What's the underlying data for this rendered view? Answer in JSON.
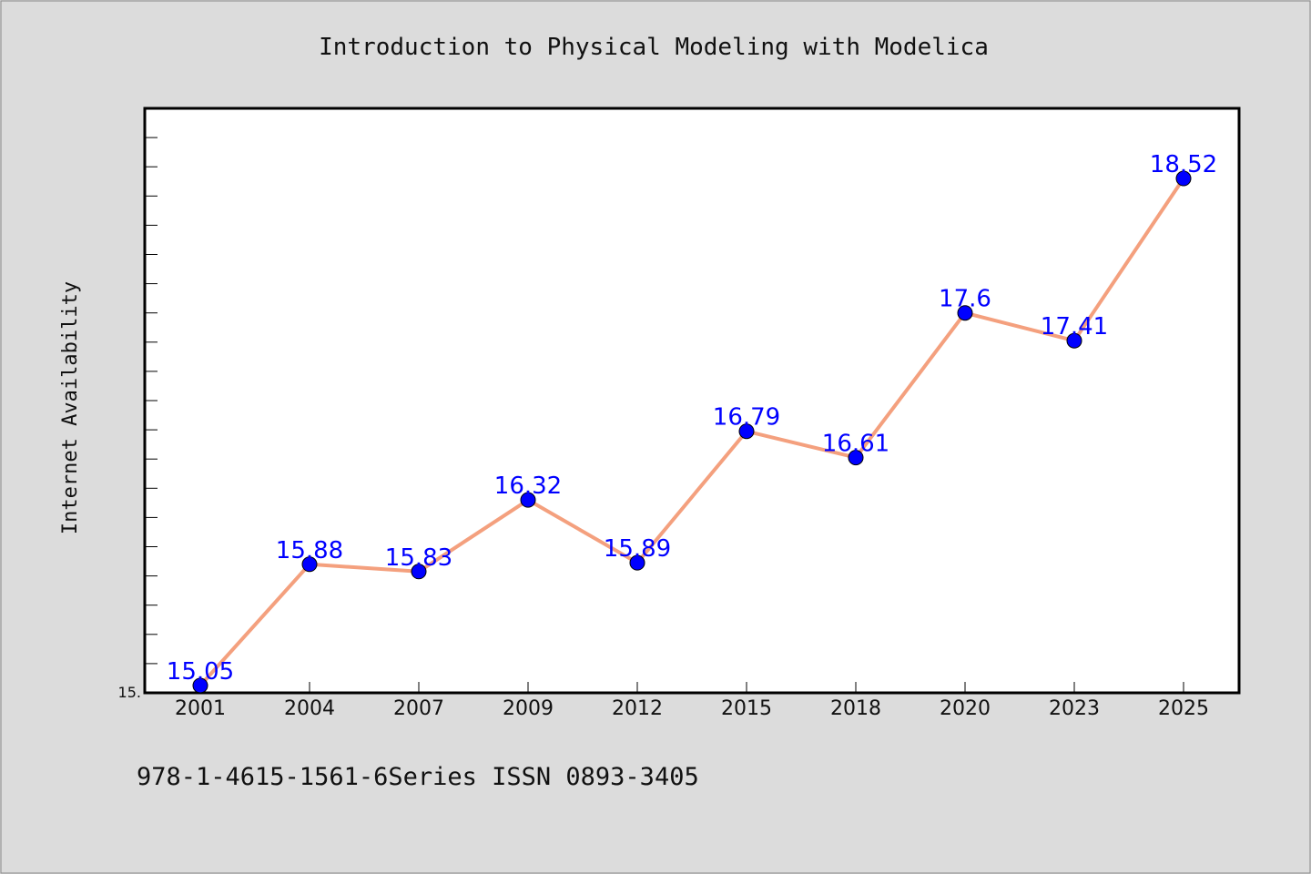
{
  "chart_data": {
    "type": "line",
    "title": "Introduction to Physical Modeling with Modelica",
    "xlabel": "",
    "ylabel": "Internet Availability",
    "categories": [
      "2001",
      "2004",
      "2007",
      "2009",
      "2012",
      "2015",
      "2018",
      "2020",
      "2023",
      "2025"
    ],
    "series": [
      {
        "values": [
          15.05,
          15.88,
          15.83,
          16.32,
          15.89,
          16.79,
          16.61,
          17.6,
          17.41,
          18.52
        ],
        "labels": [
          "15.05",
          "15.88",
          "15.83",
          "16.32",
          "15.89",
          "16.79",
          "16.61",
          "17.6",
          "17.41",
          "18.52"
        ]
      }
    ],
    "ylim": [
      15.0,
      19.0
    ],
    "ytick_labels": [
      "15."
    ],
    "line_color": "#f4a07e",
    "marker_color": "#0000ff",
    "label_color": "#0000ff",
    "grid": false,
    "legend": "none"
  },
  "footer": {
    "text": "978-1-4615-1561-6Series ISSN 0893-3405"
  },
  "colors": {
    "background": "#dcdcdc",
    "plot_background": "#ffffff"
  }
}
